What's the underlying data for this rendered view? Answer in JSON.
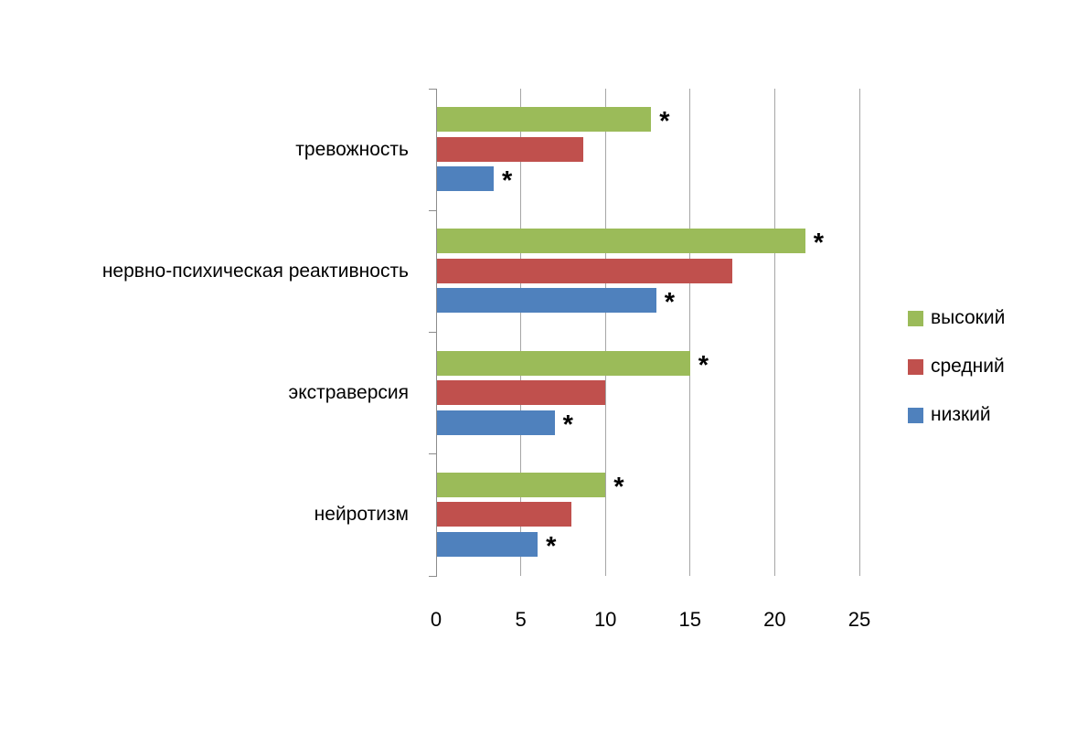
{
  "chart_data": {
    "type": "bar",
    "orientation": "horizontal",
    "categories": [
      "тревожность",
      "нервно-психическая реактивность",
      "экстраверсия",
      "нейротизм"
    ],
    "series": [
      {
        "key": "high",
        "name": "высокий",
        "color": "#9bbb59",
        "values": [
          12.7,
          21.8,
          15.0,
          10.0
        ],
        "starred": [
          true,
          true,
          true,
          true
        ]
      },
      {
        "key": "medium",
        "name": "средний",
        "color": "#c0504d",
        "values": [
          8.7,
          17.5,
          10.0,
          8.0
        ],
        "starred": [
          false,
          false,
          false,
          false
        ]
      },
      {
        "key": "low",
        "name": "низкий",
        "color": "#4f81bd",
        "values": [
          3.4,
          13.0,
          7.0,
          6.0
        ],
        "starred": [
          true,
          true,
          true,
          true
        ]
      }
    ],
    "xlim": [
      0,
      25
    ],
    "xticks": [
      0,
      5,
      10,
      15,
      20,
      25
    ],
    "grid": true,
    "legend_position": "right",
    "star_symbol": "*",
    "axis_color": "#8c8c8c",
    "gridline_color": "#a6a6a6"
  }
}
